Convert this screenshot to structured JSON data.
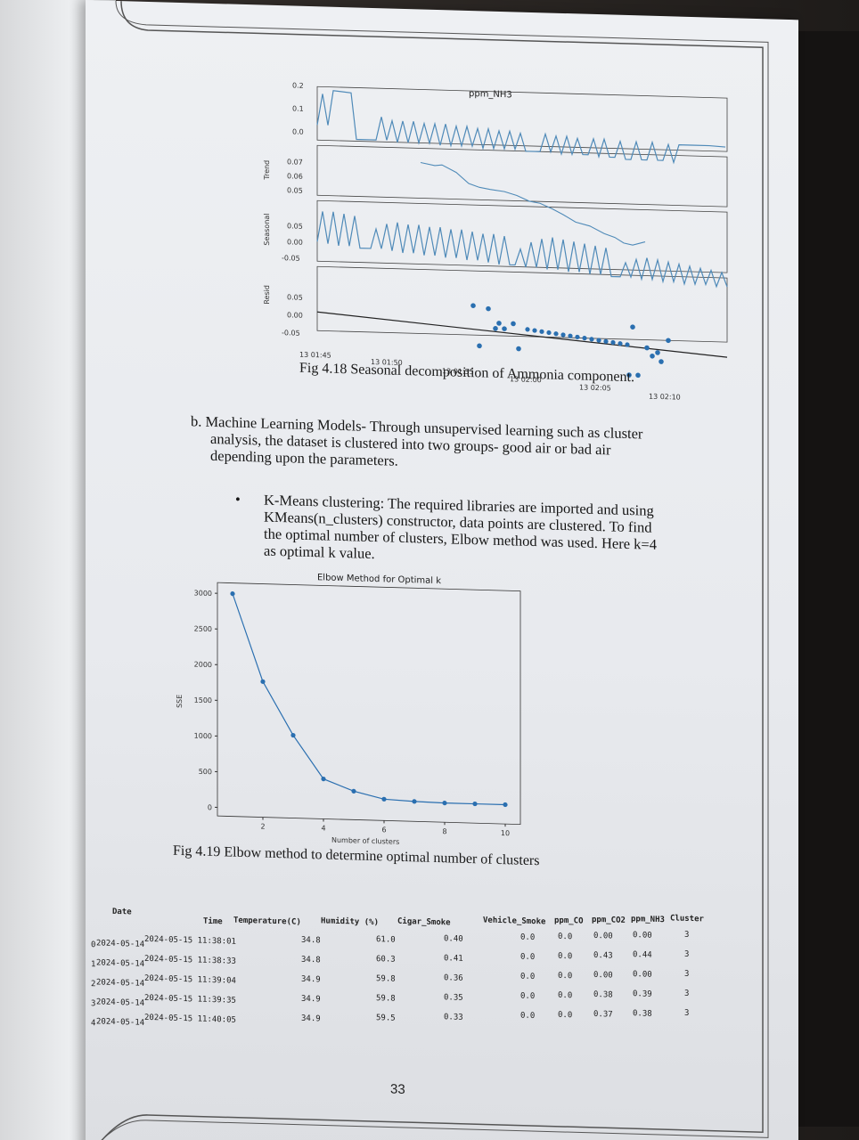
{
  "fig418": {
    "title": "ppm_NH3",
    "ylabels": [
      "",
      "Trend",
      "Seasonal",
      "Resid"
    ],
    "ticks_obs": [
      "0.2",
      "0.1",
      "0.0"
    ],
    "ticks_trend": [
      "0.07",
      "0.06",
      "0.05"
    ],
    "ticks_seasonal": [
      "0.05",
      "0.00",
      "-0.05"
    ],
    "ticks_resid": [
      "0.05",
      "0.00",
      "-0.05"
    ],
    "xticks": [
      "13 01:45",
      "13 01:50",
      "13 01:55",
      "13 02:00",
      "13 02:05",
      "13 02:10"
    ],
    "caption": "Fig 4.18 Seasonal decomposition of Ammonia component."
  },
  "section_b": {
    "lines": [
      "b.  Machine Learning Models- Through unsupervised learning such as cluster",
      "analysis, the dataset is clustered into two groups- good air or bad air",
      "depending upon the parameters."
    ]
  },
  "bullet": {
    "symbol": "•",
    "lines": [
      "K-Means clustering: The required libraries are imported and using",
      "KMeans(n_clusters) constructor, data points are clustered. To find",
      "the optimal number of clusters, Elbow method was used. Here k=4",
      "as optimal k value."
    ]
  },
  "chart_data": {
    "type": "line",
    "title": "Elbow Method for Optimal k",
    "xlabel": "Number of clusters",
    "ylabel": "SSE",
    "x": [
      1,
      2,
      3,
      4,
      5,
      6,
      7,
      8,
      9,
      10
    ],
    "values": [
      3000,
      1780,
      1040,
      440,
      280,
      180,
      160,
      150,
      150,
      150
    ],
    "xlim": [
      0.5,
      10.5
    ],
    "ylim": [
      -120,
      3150
    ],
    "xticks": [
      "2",
      "4",
      "6",
      "8",
      "10"
    ],
    "yticks": [
      "0",
      "500",
      "1000",
      "1500",
      "2000",
      "2500",
      "3000"
    ],
    "color": "#2a6fb0",
    "grid": false
  },
  "fig419_caption": "Fig 4.19 Elbow method to determine optimal number of clusters",
  "table": {
    "headers": [
      "Date",
      "Time",
      "Temperature(C)",
      "Humidity (%)",
      "Cigar_Smoke",
      "Vehicle_Smoke",
      "ppm_CO",
      "ppm_CO2",
      "ppm_NH3",
      "Cluster"
    ],
    "rows": [
      [
        "0",
        "2024-05-14",
        "2024-05-15 11:38:01",
        "34.8",
        "61.0",
        "0.40",
        "0.0",
        "0.0",
        "0.00",
        "0.00",
        "3"
      ],
      [
        "1",
        "2024-05-14",
        "2024-05-15 11:38:33",
        "34.8",
        "60.3",
        "0.41",
        "0.0",
        "0.0",
        "0.43",
        "0.44",
        "3"
      ],
      [
        "2",
        "2024-05-14",
        "2024-05-15 11:39:04",
        "34.9",
        "59.8",
        "0.36",
        "0.0",
        "0.0",
        "0.00",
        "0.00",
        "3"
      ],
      [
        "3",
        "2024-05-14",
        "2024-05-15 11:39:35",
        "34.9",
        "59.8",
        "0.35",
        "0.0",
        "0.0",
        "0.38",
        "0.39",
        "3"
      ],
      [
        "4",
        "2024-05-14",
        "2024-05-15 11:40:05",
        "34.9",
        "59.5",
        "0.33",
        "0.0",
        "0.0",
        "0.37",
        "0.38",
        "3"
      ]
    ]
  },
  "page_number": "33"
}
